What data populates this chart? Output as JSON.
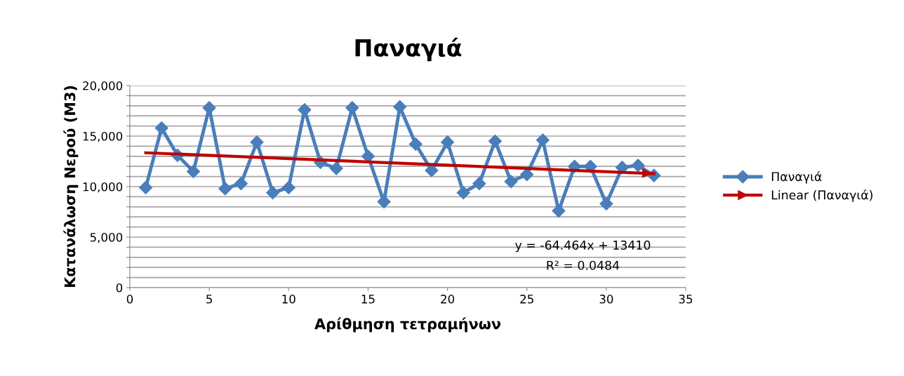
{
  "chart_data": {
    "type": "line",
    "title": "Παναγιά",
    "xlabel": "Αρίθμηση τετραμήνων",
    "ylabel": "Κατανάλωση Νερού (Μ3)",
    "x": [
      1,
      2,
      3,
      4,
      5,
      6,
      7,
      8,
      9,
      10,
      11,
      12,
      13,
      14,
      15,
      16,
      17,
      18,
      19,
      20,
      21,
      22,
      23,
      24,
      25,
      26,
      27,
      28,
      29,
      30,
      31,
      32,
      33
    ],
    "series": [
      {
        "name": "Παναγιά",
        "color": "#4a7ebb",
        "marker": "diamond",
        "values": [
          9900,
          15800,
          13100,
          11500,
          17800,
          9800,
          10300,
          14400,
          9400,
          9900,
          17600,
          12400,
          11800,
          17800,
          13000,
          8500,
          17900,
          14200,
          11600,
          14400,
          9400,
          10300,
          14500,
          10500,
          11200,
          14600,
          7600,
          12000,
          12000,
          8300,
          11900,
          12100,
          11100
        ]
      },
      {
        "name": "Linear (Παναγιά)",
        "color": "#c00000",
        "marker": "none",
        "x": [
          1,
          33
        ],
        "values": [
          13350,
          11280
        ]
      }
    ],
    "annotations": [
      "y = -64.464x + 13410",
      "R² = 0.0484"
    ],
    "xlim": [
      0,
      35
    ],
    "xticks": [
      0,
      5,
      10,
      15,
      20,
      25,
      30,
      35
    ],
    "ylim": [
      0,
      20000
    ],
    "yticks": [
      {
        "value": 0,
        "label": "0"
      },
      {
        "value": 1000,
        "label": null
      },
      {
        "value": 2000,
        "label": null
      },
      {
        "value": 3000,
        "label": null
      },
      {
        "value": 4000,
        "label": null
      },
      {
        "value": 5000,
        "label": "5,000"
      },
      {
        "value": 6000,
        "label": null
      },
      {
        "value": 7000,
        "label": null
      },
      {
        "value": 8000,
        "label": null
      },
      {
        "value": 9000,
        "label": null
      },
      {
        "value": 10000,
        "label": "10,000"
      },
      {
        "value": 11000,
        "label": null
      },
      {
        "value": 12000,
        "label": null
      },
      {
        "value": 13000,
        "label": null
      },
      {
        "value": 14000,
        "label": null
      },
      {
        "value": 15000,
        "label": "15,000"
      },
      {
        "value": 16000,
        "label": null
      },
      {
        "value": 17000,
        "label": null
      },
      {
        "value": 18000,
        "label": null
      },
      {
        "value": 19000,
        "label": null
      },
      {
        "value": 20000,
        "label": "20,000"
      }
    ],
    "grid": "y",
    "legend": "right"
  }
}
